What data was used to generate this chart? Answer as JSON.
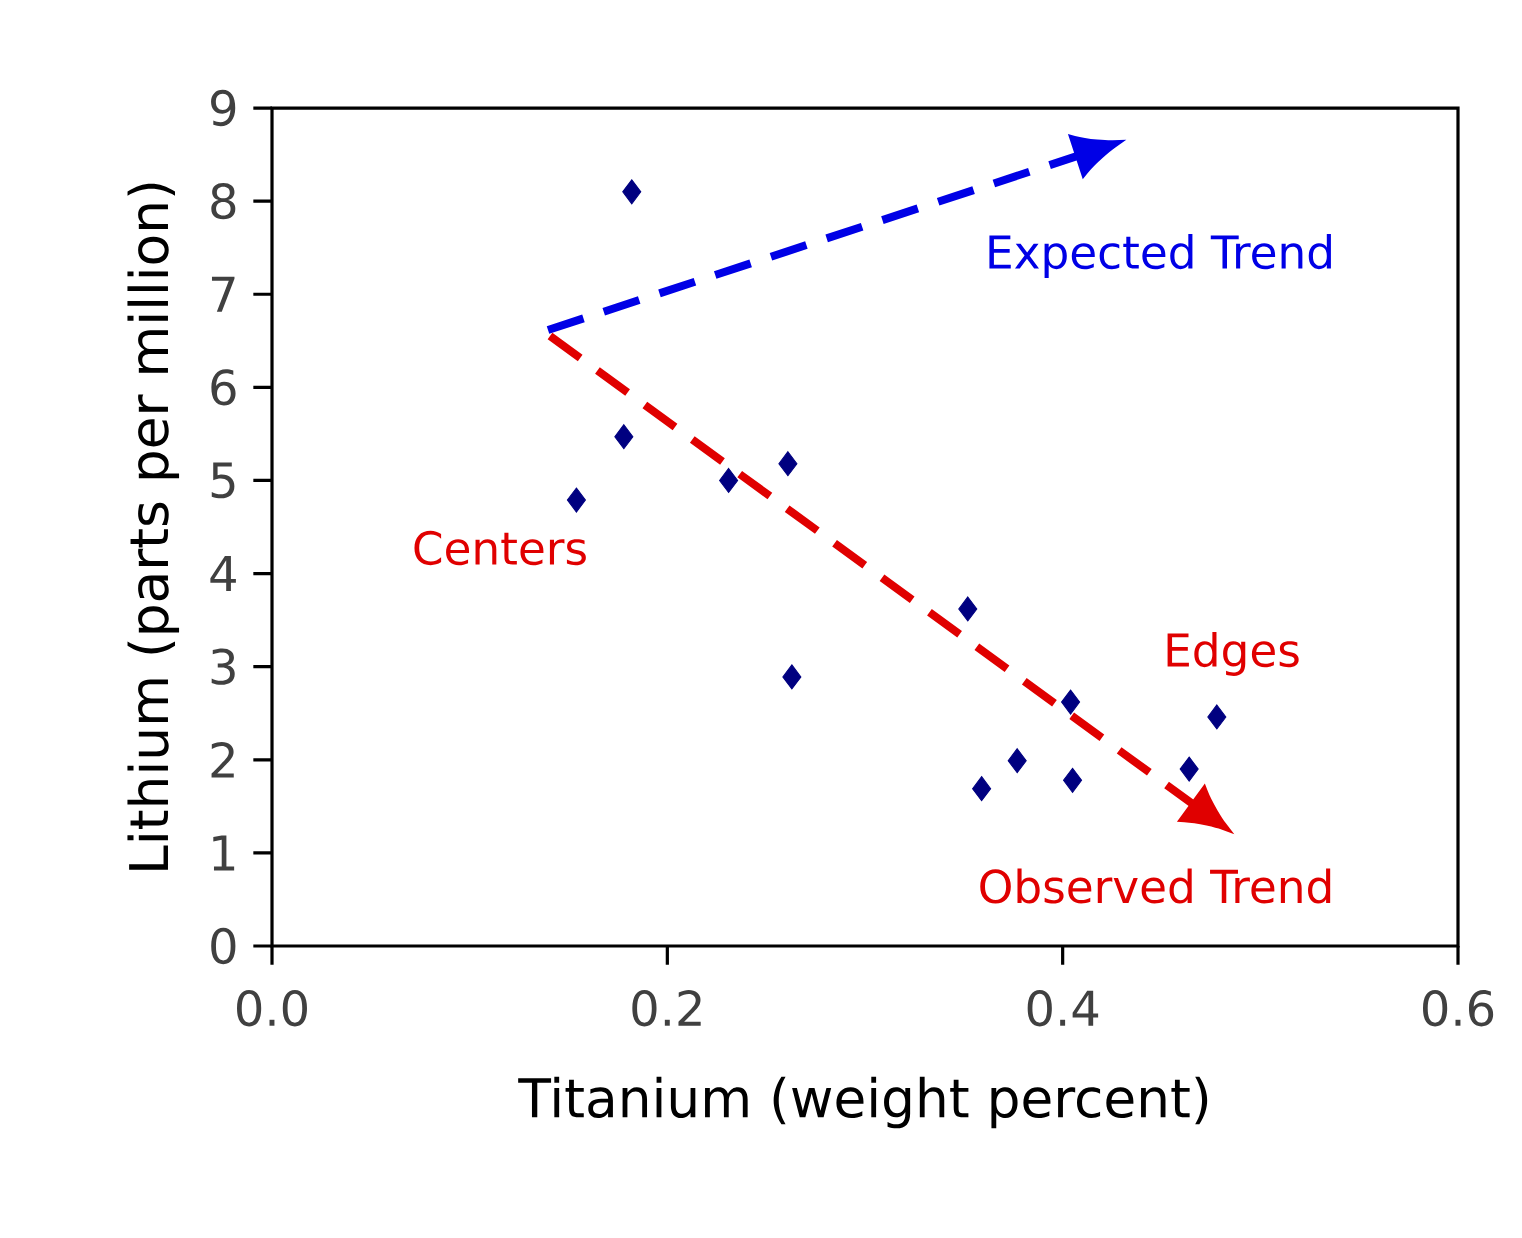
{
  "chart_data": {
    "type": "scatter",
    "xlabel": "Titanium (weight percent)",
    "ylabel": "Lithium (parts per million)",
    "xlim": [
      0,
      0.6
    ],
    "ylim": [
      0,
      9
    ],
    "xticks": [
      {
        "value": 0,
        "label": "0.0"
      },
      {
        "value": 0.2,
        "label": "0.2"
      },
      {
        "value": 0.4,
        "label": "0.4"
      },
      {
        "value": 0.6,
        "label": "0.6"
      }
    ],
    "yticks": [
      0,
      1,
      2,
      3,
      4,
      5,
      6,
      7,
      8,
      9
    ],
    "marker": "diamond",
    "series": [
      {
        "color": "#000080",
        "x": [
          0.154,
          0.182,
          0.178,
          0.231,
          0.261,
          0.263,
          0.352,
          0.359,
          0.377,
          0.404,
          0.405,
          0.464,
          0.478
        ],
        "values": [
          4.79,
          8.1,
          5.47,
          5.0,
          5.18,
          2.89,
          3.62,
          1.69,
          1.99,
          2.62,
          1.78,
          1.9,
          2.46
        ]
      }
    ],
    "annotations": [
      "Expected Trend",
      "Centers",
      "Edges",
      "Observed Trend"
    ]
  }
}
